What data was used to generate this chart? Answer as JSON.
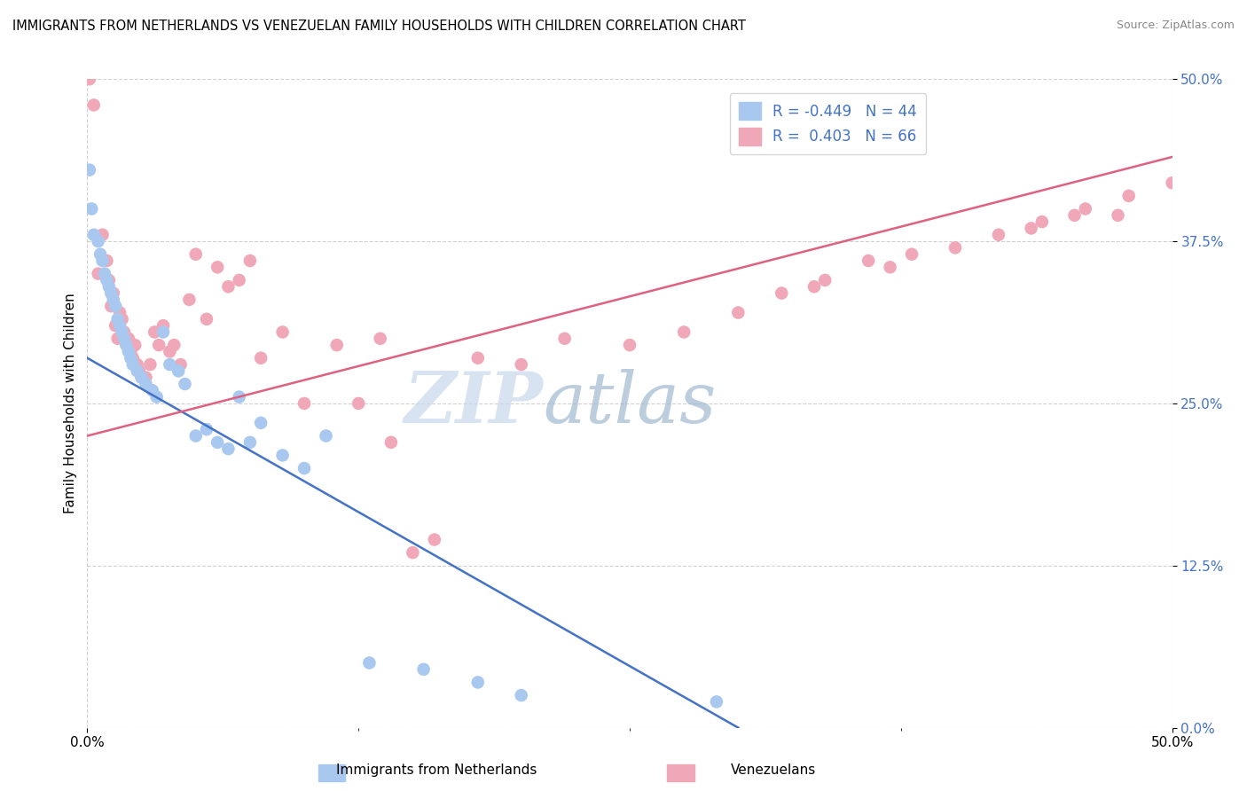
{
  "title": "IMMIGRANTS FROM NETHERLANDS VS VENEZUELAN FAMILY HOUSEHOLDS WITH CHILDREN CORRELATION CHART",
  "source": "Source: ZipAtlas.com",
  "ylabel": "Family Households with Children",
  "legend_label1": "Immigrants from Netherlands",
  "legend_label2": "Venezuelans",
  "ytick_values": [
    0.0,
    12.5,
    25.0,
    37.5,
    50.0
  ],
  "xlim": [
    0,
    50
  ],
  "ylim": [
    0,
    50
  ],
  "blue_color": "#a8c8f0",
  "pink_color": "#f0a8b8",
  "blue_line_color": "#4472c4",
  "pink_line_color": "#e06080",
  "blue_scatter": [
    [
      0.1,
      43.0
    ],
    [
      0.2,
      40.0
    ],
    [
      0.3,
      38.0
    ],
    [
      0.5,
      37.5
    ],
    [
      0.6,
      36.5
    ],
    [
      0.7,
      36.0
    ],
    [
      0.8,
      35.0
    ],
    [
      0.9,
      34.5
    ],
    [
      1.0,
      34.0
    ],
    [
      1.1,
      33.5
    ],
    [
      1.2,
      33.0
    ],
    [
      1.3,
      32.5
    ],
    [
      1.4,
      31.5
    ],
    [
      1.5,
      31.0
    ],
    [
      1.6,
      30.5
    ],
    [
      1.7,
      30.0
    ],
    [
      1.8,
      29.5
    ],
    [
      1.9,
      29.0
    ],
    [
      2.0,
      28.5
    ],
    [
      2.1,
      28.0
    ],
    [
      2.3,
      27.5
    ],
    [
      2.5,
      27.0
    ],
    [
      2.7,
      26.5
    ],
    [
      3.0,
      26.0
    ],
    [
      3.2,
      25.5
    ],
    [
      3.5,
      30.5
    ],
    [
      3.8,
      28.0
    ],
    [
      4.2,
      27.5
    ],
    [
      4.5,
      26.5
    ],
    [
      5.0,
      22.5
    ],
    [
      5.5,
      23.0
    ],
    [
      6.0,
      22.0
    ],
    [
      6.5,
      21.5
    ],
    [
      7.0,
      25.5
    ],
    [
      7.5,
      22.0
    ],
    [
      8.0,
      23.5
    ],
    [
      9.0,
      21.0
    ],
    [
      10.0,
      20.0
    ],
    [
      11.0,
      22.5
    ],
    [
      13.0,
      5.0
    ],
    [
      15.5,
      4.5
    ],
    [
      18.0,
      3.5
    ],
    [
      20.0,
      2.5
    ],
    [
      29.0,
      2.0
    ]
  ],
  "pink_scatter": [
    [
      0.1,
      50.0
    ],
    [
      0.3,
      48.0
    ],
    [
      0.5,
      35.0
    ],
    [
      0.7,
      38.0
    ],
    [
      0.9,
      36.0
    ],
    [
      1.0,
      34.5
    ],
    [
      1.1,
      32.5
    ],
    [
      1.2,
      33.5
    ],
    [
      1.3,
      31.0
    ],
    [
      1.4,
      30.0
    ],
    [
      1.5,
      32.0
    ],
    [
      1.6,
      31.5
    ],
    [
      1.7,
      30.5
    ],
    [
      1.8,
      29.5
    ],
    [
      1.9,
      30.0
    ],
    [
      2.0,
      29.0
    ],
    [
      2.1,
      28.5
    ],
    [
      2.2,
      29.5
    ],
    [
      2.3,
      28.0
    ],
    [
      2.4,
      27.5
    ],
    [
      2.5,
      27.0
    ],
    [
      2.7,
      27.0
    ],
    [
      2.9,
      28.0
    ],
    [
      3.1,
      30.5
    ],
    [
      3.3,
      29.5
    ],
    [
      3.5,
      31.0
    ],
    [
      3.8,
      29.0
    ],
    [
      4.0,
      29.5
    ],
    [
      4.3,
      28.0
    ],
    [
      4.7,
      33.0
    ],
    [
      5.0,
      36.5
    ],
    [
      5.5,
      31.5
    ],
    [
      6.0,
      35.5
    ],
    [
      6.5,
      34.0
    ],
    [
      7.0,
      34.5
    ],
    [
      7.5,
      36.0
    ],
    [
      8.0,
      28.5
    ],
    [
      9.0,
      30.5
    ],
    [
      10.0,
      25.0
    ],
    [
      11.5,
      29.5
    ],
    [
      12.5,
      25.0
    ],
    [
      13.5,
      30.0
    ],
    [
      14.0,
      22.0
    ],
    [
      15.0,
      13.5
    ],
    [
      16.0,
      14.5
    ],
    [
      18.0,
      28.5
    ],
    [
      20.0,
      28.0
    ],
    [
      22.0,
      30.0
    ],
    [
      25.0,
      29.5
    ],
    [
      27.5,
      30.5
    ],
    [
      30.0,
      32.0
    ],
    [
      32.0,
      33.5
    ],
    [
      34.0,
      34.5
    ],
    [
      36.0,
      36.0
    ],
    [
      38.0,
      36.5
    ],
    [
      40.0,
      37.0
    ],
    [
      42.0,
      38.0
    ],
    [
      44.0,
      39.0
    ],
    [
      46.0,
      40.0
    ],
    [
      48.0,
      41.0
    ],
    [
      50.0,
      42.0
    ],
    [
      47.5,
      39.5
    ],
    [
      43.5,
      38.5
    ],
    [
      45.5,
      39.5
    ],
    [
      37.0,
      35.5
    ],
    [
      33.5,
      34.0
    ]
  ],
  "blue_trend_x": [
    0.0,
    30.0
  ],
  "blue_trend_y": [
    28.5,
    0.0
  ],
  "pink_trend_x": [
    0.0,
    50.0
  ],
  "pink_trend_y": [
    22.5,
    44.0
  ]
}
